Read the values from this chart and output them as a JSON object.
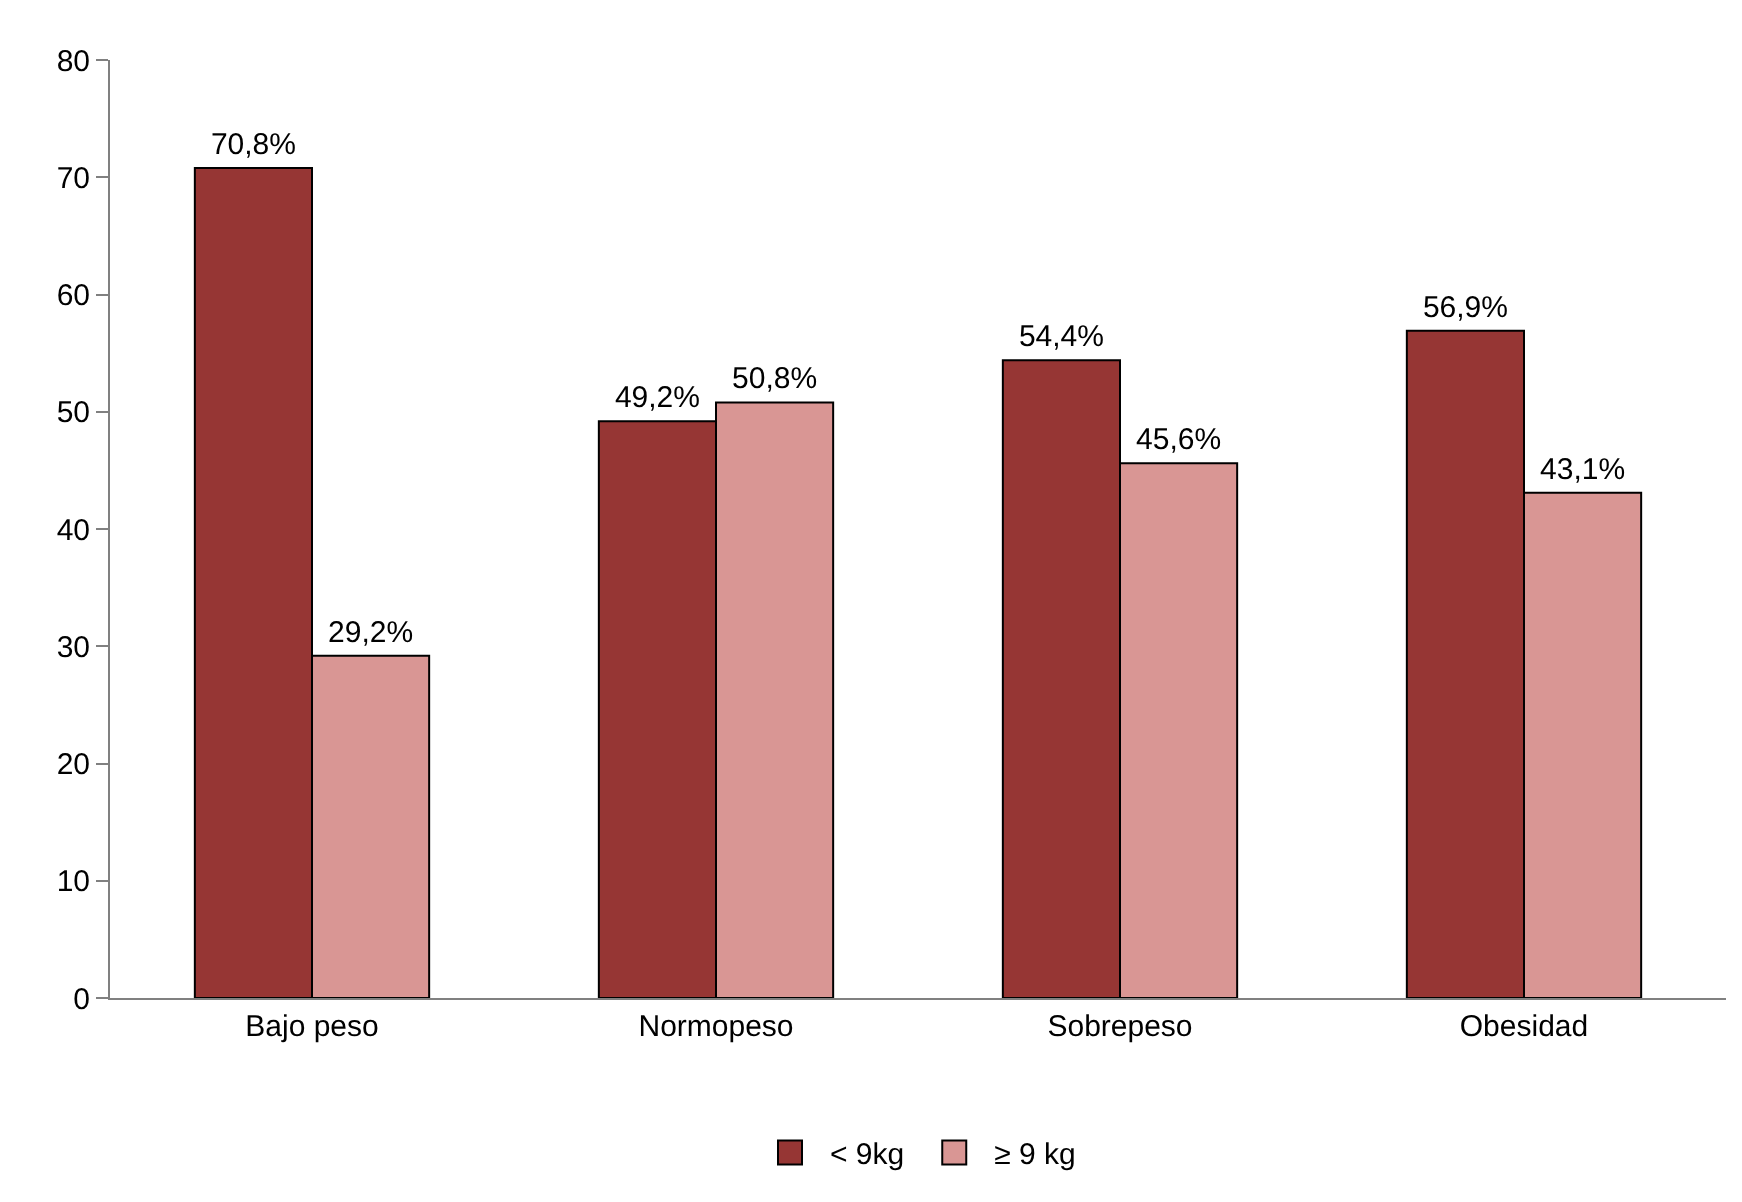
{
  "chart_data": {
    "type": "bar",
    "categories": [
      "Bajo peso",
      "Normopeso",
      "Sobrepeso",
      "Obesidad"
    ],
    "series": [
      {
        "name": "< 9kg",
        "color": "#963634",
        "values": [
          70.8,
          49.2,
          54.4,
          56.9
        ],
        "value_labels": [
          "70,8%",
          "49,2%",
          "54,4%",
          "56,9%"
        ]
      },
      {
        "name": "≥ 9 kg",
        "color": "#d99694",
        "values": [
          29.2,
          50.8,
          45.6,
          43.1
        ],
        "value_labels": [
          "29,2%",
          "50,8%",
          "45,6%",
          "43,1%"
        ]
      }
    ],
    "ylim": [
      0,
      80
    ],
    "yticks": [
      0,
      10,
      20,
      30,
      40,
      50,
      60,
      70,
      80
    ],
    "grid": false,
    "legend": "bottom"
  }
}
